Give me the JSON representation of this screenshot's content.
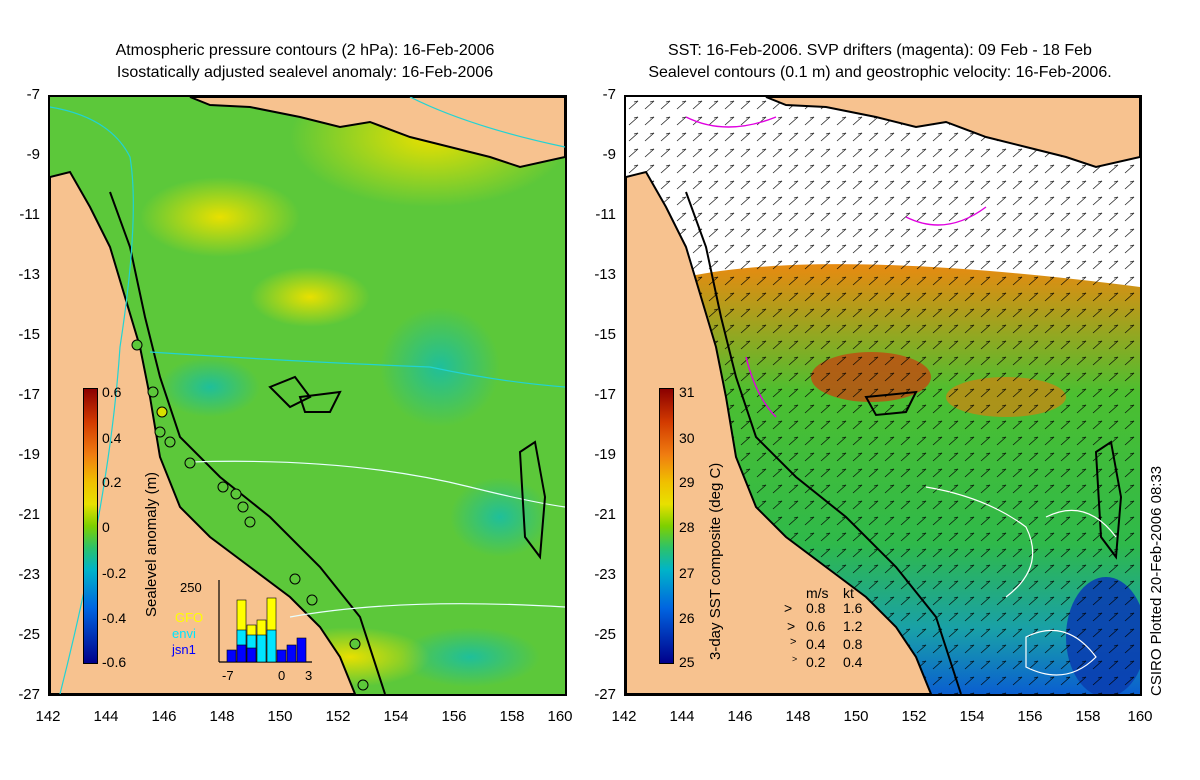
{
  "left_panel": {
    "title_line1": "Atmospheric pressure contours (2 hPa): 16-Feb-2006",
    "title_line2": "Isostatically adjusted sealevel anomaly: 16-Feb-2006",
    "colorbar_label": "Sealevel anomaly (m)",
    "colorbar_ticks": [
      "0.6",
      "0.4",
      "0.2",
      "0",
      "-0.2",
      "-0.4",
      "-0.6"
    ],
    "histogram": {
      "y_max_label": "250",
      "x_tick_labels": [
        "-7",
        "0",
        "3"
      ],
      "legend": [
        {
          "label": "GFO",
          "color": "#ffff00"
        },
        {
          "label": "envi",
          "color": "#00e5ff"
        },
        {
          "label": "jsn1",
          "color": "#0000ff"
        }
      ]
    }
  },
  "right_panel": {
    "title_line1": "SST: 16-Feb-2006. SVP drifters (magenta): 09 Feb - 18 Feb",
    "title_line2": "Sealevel contours (0.1 m) and geostrophic velocity: 16-Feb-2006.",
    "colorbar_label": "3-day SST composite (deg C)",
    "colorbar_ticks": [
      "31",
      "30",
      "29",
      "28",
      "27",
      "26",
      "25"
    ],
    "velocity_legend": {
      "header_ms": "m/s",
      "header_kt": "kt",
      "rows": [
        {
          "ms": "0.8",
          "kt": "1.6"
        },
        {
          "ms": "0.6",
          "kt": "1.2"
        },
        {
          "ms": "0.4",
          "kt": "0.8"
        },
        {
          "ms": "0.2",
          "kt": "0.4"
        }
      ]
    },
    "credit": "CSIRO Plotted 20-Feb-2006 08:33"
  },
  "y_ticks": [
    "-7",
    "-9",
    "-11",
    "-13",
    "-15",
    "-17",
    "-19",
    "-21",
    "-23",
    "-25",
    "-27"
  ],
  "x_ticks": [
    "142",
    "144",
    "146",
    "148",
    "150",
    "152",
    "154",
    "156",
    "158",
    "160"
  ],
  "colors": {
    "land": "#f7c28f",
    "sea_anomaly_base": "#5cc83a",
    "sst_base": "#3fbf3a",
    "no_data": "#ffffff",
    "coast": "#000000"
  }
}
